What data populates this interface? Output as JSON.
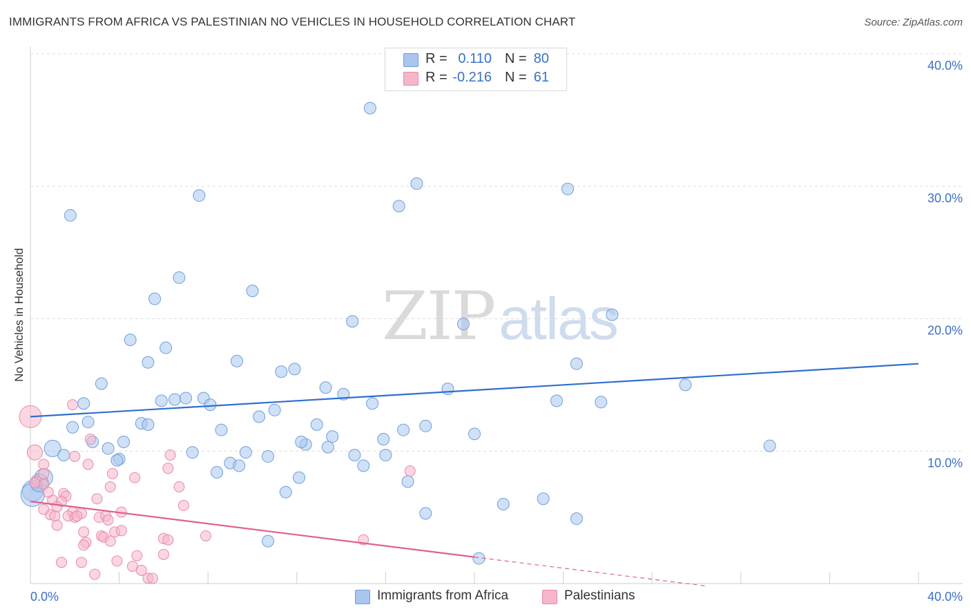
{
  "header": {
    "title": "IMMIGRANTS FROM AFRICA VS PALESTINIAN NO VEHICLES IN HOUSEHOLD CORRELATION CHART",
    "source": "Source: ZipAtlas.com"
  },
  "watermark": {
    "zip": "ZIP",
    "atlas": "atlas"
  },
  "legend": {
    "rows": [
      {
        "r_label": "R =",
        "r_value": "0.110",
        "n_label": "N =",
        "n_value": "80"
      },
      {
        "r_label": "R =",
        "r_value": "-0.216",
        "n_label": "N =",
        "n_value": "61"
      }
    ]
  },
  "bottom_legend": {
    "series1": "Immigrants from Africa",
    "series2": "Palestinians"
  },
  "colors": {
    "blue_fill": "#a9c6ee",
    "blue_stroke": "#6f9fdb",
    "blue_line": "#2f6fcf",
    "pink_fill": "#f5b6ca",
    "pink_stroke": "#e88aa8",
    "pink_line": "#e0608c",
    "axis_text": "#3a70c8",
    "grid": "#dcdcdc"
  },
  "chart_data": {
    "type": "scatter",
    "ylabel": "No Vehicles in Household",
    "xlim": [
      0,
      40
    ],
    "ylim": [
      0,
      40
    ],
    "x_tick_labels": {
      "left": "0.0%",
      "right": "40.0%"
    },
    "y_ticks": [
      {
        "value": 10,
        "label": "10.0%"
      },
      {
        "value": 20,
        "label": "20.0%"
      },
      {
        "value": 30,
        "label": "30.0%"
      },
      {
        "value": 40,
        "label": "40.0%"
      }
    ],
    "series": [
      {
        "name": "Immigrants from Africa",
        "color": "blue",
        "trend": {
          "x": [
            0,
            40
          ],
          "y": [
            12.6,
            16.6
          ]
        },
        "points": [
          [
            15.3,
            35.9
          ],
          [
            17.4,
            30.2
          ],
          [
            16.6,
            28.5
          ],
          [
            7.6,
            29.3
          ],
          [
            24.2,
            29.8
          ],
          [
            1.8,
            27.8
          ],
          [
            6.7,
            23.1
          ],
          [
            10.0,
            22.1
          ],
          [
            5.6,
            21.5
          ],
          [
            14.5,
            19.8
          ],
          [
            19.5,
            19.6
          ],
          [
            26.2,
            20.3
          ],
          [
            4.5,
            18.4
          ],
          [
            6.1,
            17.8
          ],
          [
            5.3,
            16.7
          ],
          [
            9.3,
            16.8
          ],
          [
            11.9,
            16.2
          ],
          [
            11.3,
            16.0
          ],
          [
            24.6,
            16.6
          ],
          [
            3.2,
            15.1
          ],
          [
            13.3,
            14.8
          ],
          [
            18.8,
            14.7
          ],
          [
            29.5,
            15.0
          ],
          [
            2.4,
            13.6
          ],
          [
            5.9,
            13.8
          ],
          [
            6.5,
            13.9
          ],
          [
            7.0,
            14.0
          ],
          [
            7.8,
            14.0
          ],
          [
            8.1,
            13.5
          ],
          [
            14.1,
            14.3
          ],
          [
            15.4,
            13.6
          ],
          [
            23.7,
            13.8
          ],
          [
            25.7,
            13.7
          ],
          [
            11.0,
            13.1
          ],
          [
            10.3,
            12.6
          ],
          [
            2.6,
            12.2
          ],
          [
            5.0,
            12.1
          ],
          [
            5.3,
            12.0
          ],
          [
            12.9,
            12.0
          ],
          [
            16.8,
            11.6
          ],
          [
            17.8,
            11.9
          ],
          [
            1.9,
            11.8
          ],
          [
            8.6,
            11.6
          ],
          [
            13.6,
            11.1
          ],
          [
            20.0,
            11.3
          ],
          [
            2.8,
            10.7
          ],
          [
            4.2,
            10.7
          ],
          [
            15.9,
            10.9
          ],
          [
            12.4,
            10.5
          ],
          [
            12.2,
            10.7
          ],
          [
            13.4,
            10.3
          ],
          [
            33.3,
            10.4
          ],
          [
            1.0,
            10.2
          ],
          [
            3.5,
            10.2
          ],
          [
            1.5,
            9.7
          ],
          [
            7.3,
            9.9
          ],
          [
            9.7,
            9.9
          ],
          [
            10.7,
            9.6
          ],
          [
            14.6,
            9.7
          ],
          [
            16.0,
            9.7
          ],
          [
            4.0,
            9.4
          ],
          [
            3.9,
            9.3
          ],
          [
            9.0,
            9.1
          ],
          [
            9.4,
            8.9
          ],
          [
            15.0,
            8.9
          ],
          [
            8.4,
            8.4
          ],
          [
            12.1,
            8.0
          ],
          [
            0.6,
            8.0
          ],
          [
            0.3,
            7.4
          ],
          [
            0.1,
            7.0
          ],
          [
            0.1,
            6.7
          ],
          [
            0.4,
            7.6
          ],
          [
            17.0,
            7.7
          ],
          [
            11.5,
            6.9
          ],
          [
            23.1,
            6.4
          ],
          [
            21.3,
            6.0
          ],
          [
            17.8,
            5.3
          ],
          [
            24.6,
            4.9
          ],
          [
            10.7,
            3.2
          ],
          [
            20.2,
            1.9
          ]
        ],
        "sizes": {
          "0.1,6.7": 17,
          "0.1,7.0": 15,
          "0.4,7.6": 13,
          "0.6,8.0": 13,
          "1.0,10.2": 12
        }
      },
      {
        "name": "Palestinians",
        "color": "pink",
        "trend": {
          "x": [
            0,
            20.0
          ],
          "y": [
            6.2,
            2.0
          ]
        },
        "trend_dashed": {
          "x": [
            20.0,
            30.5
          ],
          "y": [
            2.0,
            -0.2
          ]
        },
        "points": [
          [
            0.0,
            12.6
          ],
          [
            0.2,
            9.9
          ],
          [
            1.9,
            13.5
          ],
          [
            2.7,
            10.9
          ],
          [
            0.6,
            9.0
          ],
          [
            2.0,
            9.6
          ],
          [
            6.3,
            9.7
          ],
          [
            2.6,
            9.0
          ],
          [
            0.6,
            8.3
          ],
          [
            3.7,
            8.3
          ],
          [
            4.7,
            8.0
          ],
          [
            6.2,
            8.7
          ],
          [
            17.1,
            8.5
          ],
          [
            0.3,
            7.7
          ],
          [
            0.6,
            7.5
          ],
          [
            3.6,
            7.3
          ],
          [
            6.7,
            7.3
          ],
          [
            1.5,
            6.8
          ],
          [
            1.6,
            6.6
          ],
          [
            1.0,
            6.3
          ],
          [
            1.4,
            6.2
          ],
          [
            3.0,
            6.4
          ],
          [
            1.2,
            5.8
          ],
          [
            1.9,
            5.4
          ],
          [
            1.7,
            5.1
          ],
          [
            0.9,
            5.2
          ],
          [
            1.1,
            5.1
          ],
          [
            3.1,
            5.0
          ],
          [
            3.4,
            5.1
          ],
          [
            2.0,
            5.0
          ],
          [
            4.1,
            5.4
          ],
          [
            6.9,
            5.9
          ],
          [
            2.3,
            5.3
          ],
          [
            0.6,
            5.6
          ],
          [
            1.2,
            4.4
          ],
          [
            3.5,
            4.8
          ],
          [
            2.4,
            3.9
          ],
          [
            3.8,
            3.9
          ],
          [
            3.2,
            3.6
          ],
          [
            3.3,
            3.5
          ],
          [
            6.0,
            3.4
          ],
          [
            6.2,
            3.3
          ],
          [
            7.9,
            3.6
          ],
          [
            15.0,
            3.3
          ],
          [
            2.5,
            3.1
          ],
          [
            3.6,
            3.2
          ],
          [
            2.4,
            2.9
          ],
          [
            6.0,
            2.2
          ],
          [
            4.8,
            2.1
          ],
          [
            3.9,
            1.7
          ],
          [
            2.3,
            1.6
          ],
          [
            4.6,
            1.3
          ],
          [
            5.0,
            1.0
          ],
          [
            1.4,
            1.6
          ],
          [
            2.9,
            0.7
          ],
          [
            5.3,
            0.4
          ],
          [
            5.5,
            0.4
          ],
          [
            4.1,
            4.0
          ],
          [
            2.1,
            5.1
          ],
          [
            0.2,
            7.6
          ],
          [
            0.8,
            6.9
          ]
        ],
        "sizes": {
          "0.0,12.6": 16,
          "0.2,9.9": 11
        }
      }
    ]
  }
}
